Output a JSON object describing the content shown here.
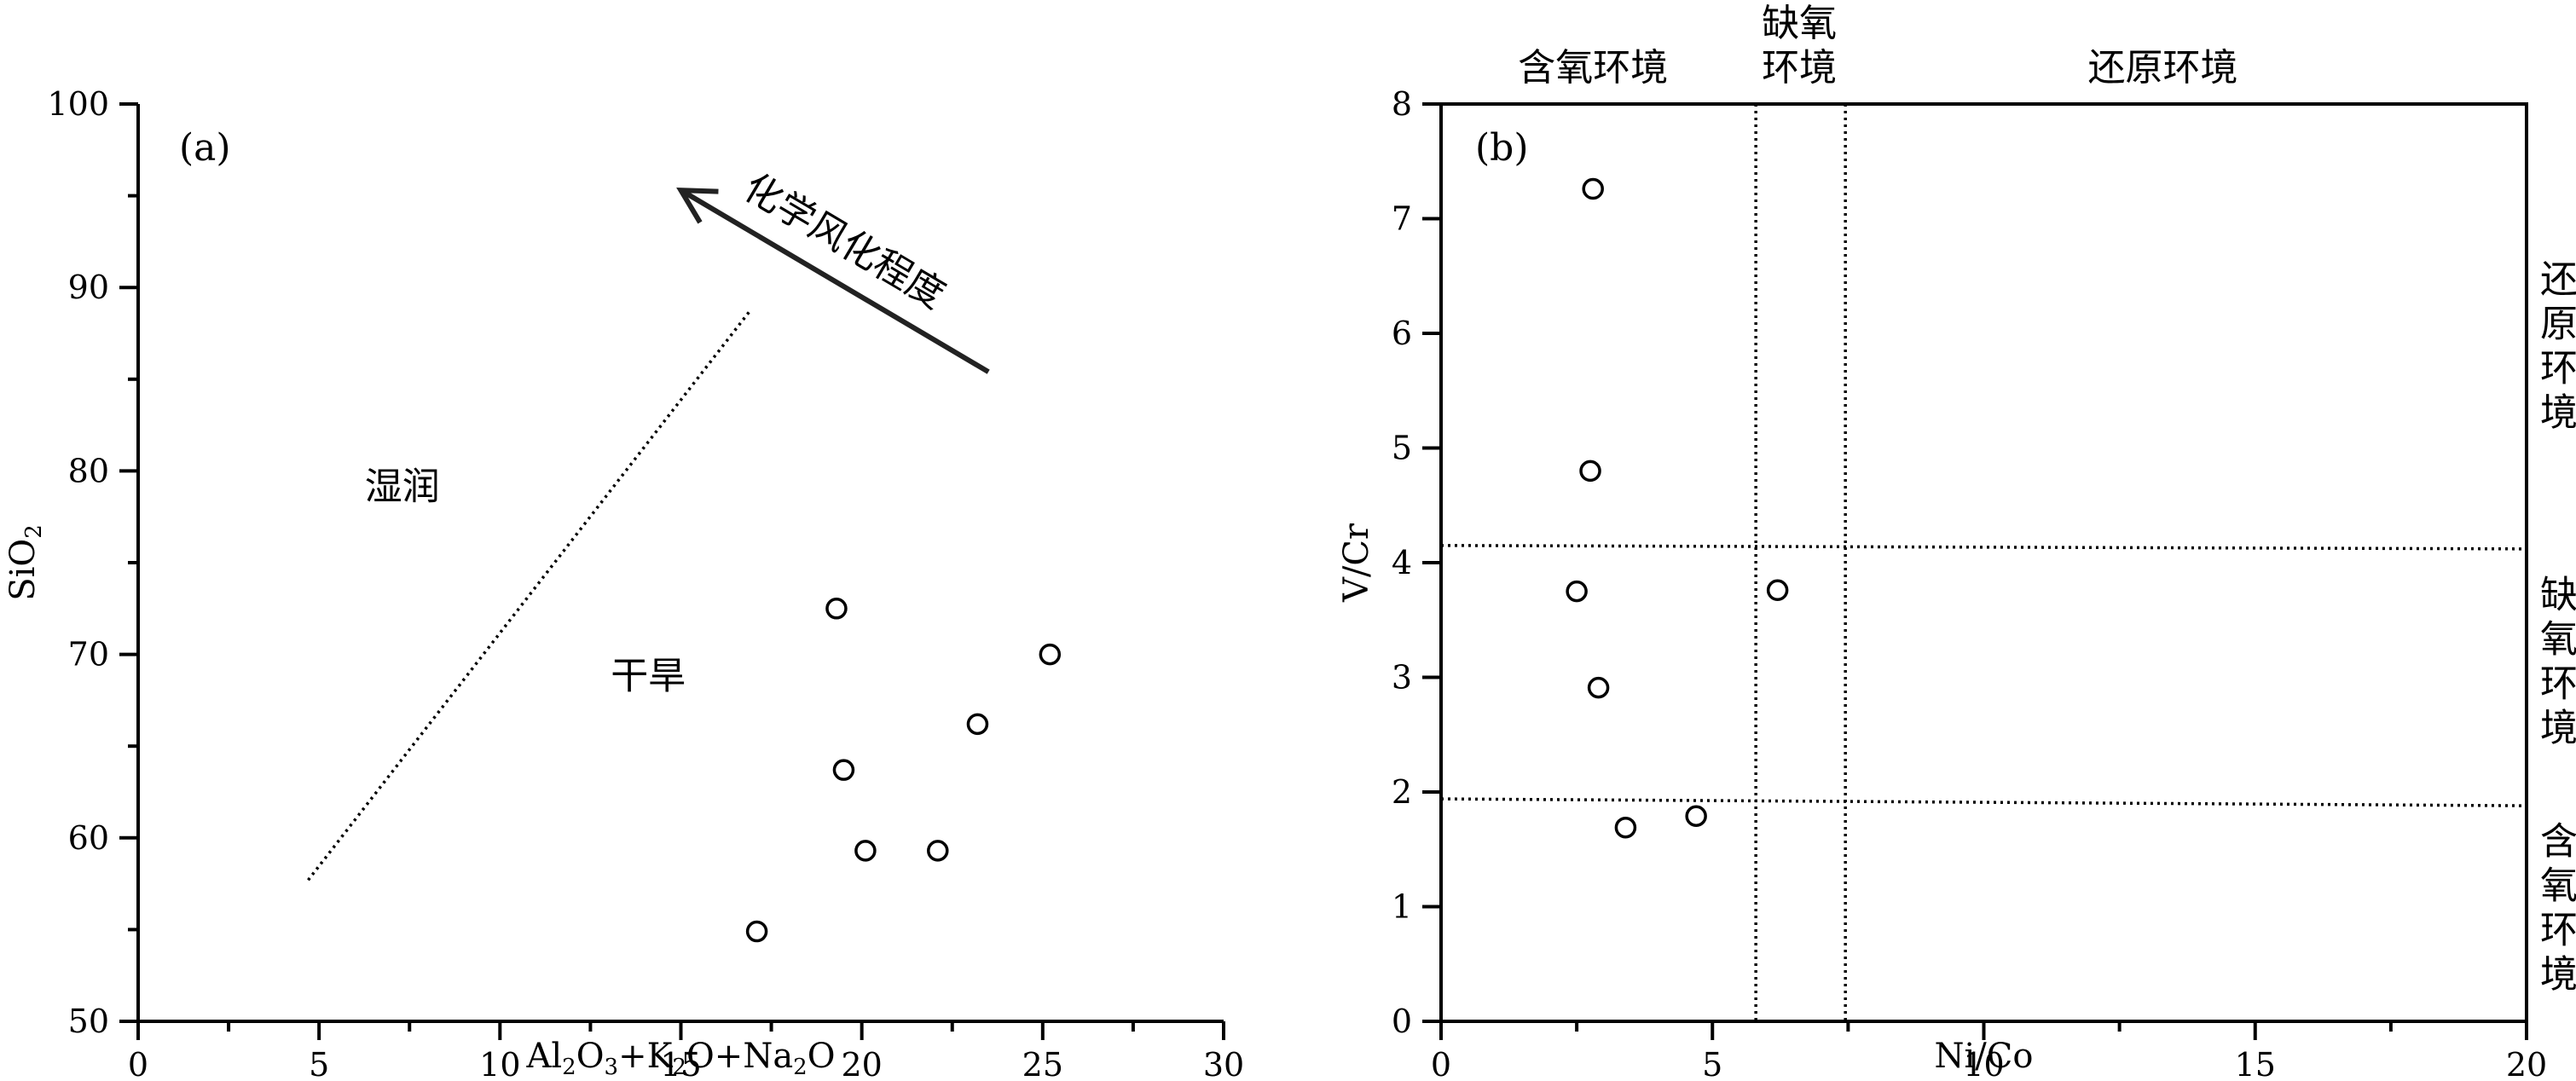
{
  "chart_data": [
    {
      "panel": "(a)",
      "type": "scatter",
      "xlabel": {
        "parts": [
          [
            "Al",
            ""
          ],
          [
            "2",
            "sub"
          ],
          [
            "O",
            ""
          ],
          [
            "3",
            "sub"
          ],
          [
            "+K",
            ""
          ],
          [
            "2",
            "sub"
          ],
          [
            "O+Na",
            ""
          ],
          [
            "2",
            "sub"
          ],
          [
            "O",
            ""
          ]
        ]
      },
      "ylabel": {
        "parts": [
          [
            "SiO",
            ""
          ],
          [
            "2",
            "sub"
          ]
        ]
      },
      "xlim": [
        0,
        30
      ],
      "ylim": [
        50,
        100
      ],
      "xticks": [
        0,
        5,
        10,
        15,
        20,
        25,
        30
      ],
      "yticks": [
        50,
        60,
        70,
        80,
        90,
        100
      ],
      "xminor": [
        2.5,
        7.5,
        12.5,
        17.5,
        22.5,
        27.5
      ],
      "yminor": [
        55,
        65,
        75,
        85,
        95
      ],
      "points": [
        {
          "x": 19.3,
          "y": 72.5
        },
        {
          "x": 25.2,
          "y": 70.0
        },
        {
          "x": 23.2,
          "y": 66.2
        },
        {
          "x": 19.5,
          "y": 63.7
        },
        {
          "x": 20.1,
          "y": 59.3
        },
        {
          "x": 22.1,
          "y": 59.3
        },
        {
          "x": 17.1,
          "y": 54.9
        }
      ],
      "boundary_line": [
        {
          "x": 4.7,
          "y": 57.7
        },
        {
          "x": 16.9,
          "y": 88.7
        }
      ],
      "arrow": {
        "from": {
          "x": 23.5,
          "y": 85.4
        },
        "to": {
          "x": 15.0,
          "y": 95.3
        },
        "label": "化学风化程度"
      },
      "regions": [
        {
          "label": "湿润",
          "x": 7.3,
          "y": 79.2
        },
        {
          "label": "干旱",
          "x": 14.1,
          "y": 68.9
        }
      ],
      "grid": false,
      "legend": "none"
    },
    {
      "panel": "(b)",
      "type": "scatter",
      "xlabel": {
        "parts": [
          [
            "Ni/Co",
            ""
          ]
        ]
      },
      "ylabel": {
        "parts": [
          [
            "V/Cr",
            ""
          ]
        ]
      },
      "xlim": [
        0,
        20
      ],
      "ylim": [
        0,
        8
      ],
      "xticks": [
        0,
        5,
        10,
        15,
        20
      ],
      "yticks": [
        0,
        1,
        2,
        3,
        4,
        5,
        6,
        7,
        8
      ],
      "xminor": [
        2.5,
        7.5,
        12.5,
        17.5
      ],
      "yminor": [],
      "points": [
        {
          "x": 2.8,
          "y": 7.26
        },
        {
          "x": 2.75,
          "y": 4.8
        },
        {
          "x": 2.5,
          "y": 3.75
        },
        {
          "x": 6.2,
          "y": 3.76
        },
        {
          "x": 2.9,
          "y": 2.91
        },
        {
          "x": 3.4,
          "y": 1.69
        },
        {
          "x": 4.7,
          "y": 1.79
        }
      ],
      "vertical_lines": [
        5.8,
        7.45
      ],
      "horizontal_lines": [
        {
          "y0": 4.15,
          "y1": 4.12
        },
        {
          "y0": 1.94,
          "y1": 1.88
        }
      ],
      "top_labels": [
        {
          "lines": [
            "含氧环境"
          ],
          "x": 2.8
        },
        {
          "lines": [
            "缺氧",
            "环境"
          ],
          "x": 6.6
        },
        {
          "lines": [
            "还原环境"
          ],
          "x": 13.3
        }
      ],
      "right_labels": [
        {
          "chars": [
            "还",
            "原",
            "环",
            "境"
          ],
          "y": 5.9
        },
        {
          "chars": [
            "缺",
            "氧",
            "环",
            "境"
          ],
          "y": 3.15
        },
        {
          "chars": [
            "含",
            "氧",
            "环",
            "境"
          ],
          "y": 1.0
        }
      ],
      "grid": false,
      "legend": "none"
    }
  ]
}
